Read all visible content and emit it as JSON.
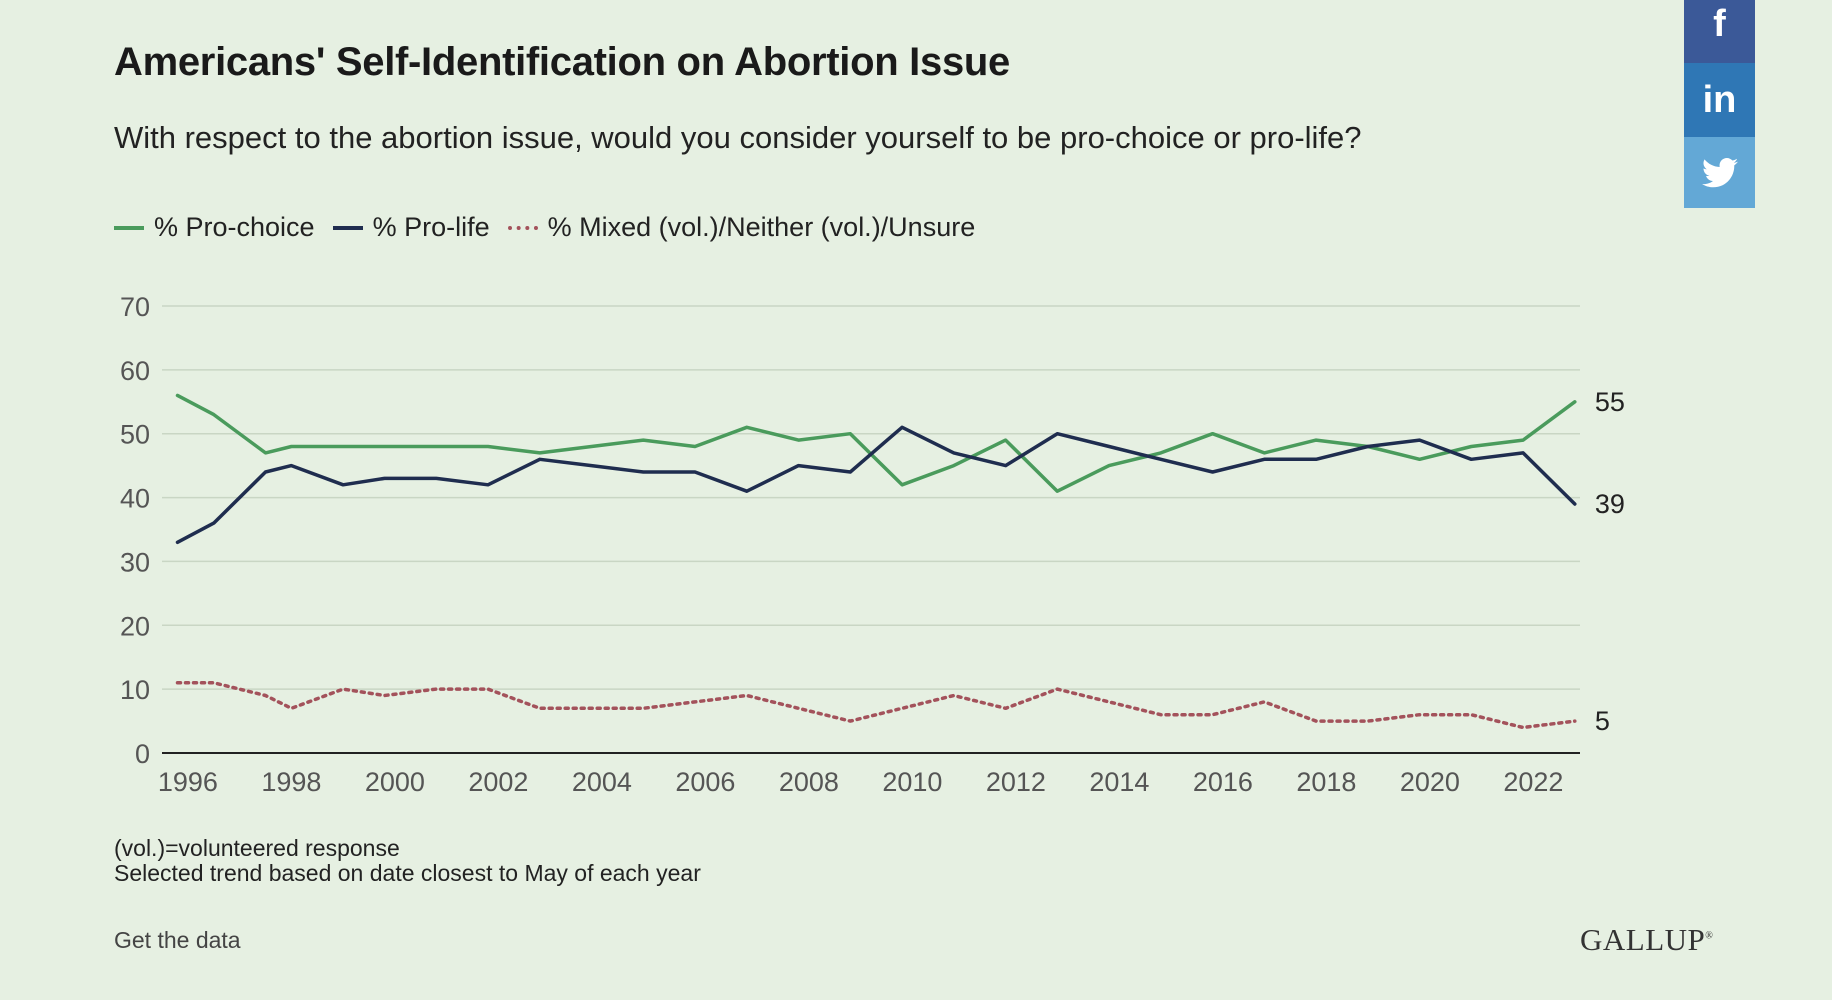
{
  "title": "Americans' Self-Identification on Abortion Issue",
  "subtitle": "With respect to the abortion issue, would you consider yourself to be pro-choice or pro-life?",
  "notes": [
    "(vol.)=volunteered response",
    "Selected trend based on date closest to May of each year"
  ],
  "get_data_label": "Get the data",
  "brand": "GALLUP",
  "brand_mark": "®",
  "share": {
    "facebook": "f",
    "linkedin": "in",
    "twitter_icon": "twitter-bird"
  },
  "colors": {
    "background": "#e6f0e2",
    "pro_choice": "#4a9b5c",
    "pro_life": "#1f2d4f",
    "mixed": "#a3525b",
    "facebook": "#3b5998",
    "linkedin": "#2f77b5",
    "twitter": "#63a8d6"
  },
  "chart_data": {
    "type": "line",
    "title": "Americans' Self-Identification on Abortion Issue",
    "x": [
      1995.8,
      1996.5,
      1997.5,
      1998,
      1999,
      1999.8,
      2000.8,
      2001.8,
      2002.8,
      2003.8,
      2004.8,
      2005.8,
      2006.8,
      2007.8,
      2008.8,
      2009.8,
      2010.8,
      2011.8,
      2012.8,
      2013.8,
      2014.8,
      2015.8,
      2016.8,
      2017.8,
      2018.8,
      2019.8,
      2020.8,
      2021.8,
      2022.8
    ],
    "series": [
      {
        "name": "% Pro-choice",
        "values": [
          56,
          53,
          47,
          48,
          48,
          48,
          48,
          48,
          47,
          48,
          49,
          48,
          51,
          49,
          50,
          42,
          45,
          49,
          41,
          45,
          47,
          50,
          47,
          49,
          48,
          46,
          48,
          49,
          55
        ],
        "end_label": "55"
      },
      {
        "name": "% Pro-life",
        "values": [
          33,
          36,
          44,
          45,
          42,
          43,
          43,
          42,
          46,
          45,
          44,
          44,
          41,
          45,
          44,
          51,
          47,
          45,
          50,
          48,
          46,
          44,
          46,
          46,
          48,
          49,
          46,
          47,
          39
        ],
        "end_label": "39"
      },
      {
        "name": "% Mixed (vol.)/Neither (vol.)/Unsure",
        "values": [
          11,
          11,
          9,
          7,
          10,
          9,
          10,
          10,
          7,
          7,
          7,
          8,
          9,
          7,
          5,
          7,
          9,
          7,
          10,
          8,
          6,
          6,
          8,
          5,
          5,
          6,
          6,
          4,
          5
        ],
        "end_label": "5"
      }
    ],
    "x_ticks": [
      "1996",
      "1998",
      "2000",
      "2002",
      "2004",
      "2006",
      "2008",
      "2010",
      "2012",
      "2014",
      "2016",
      "2018",
      "2020",
      "2022"
    ],
    "y_ticks": [
      "0",
      "10",
      "20",
      "30",
      "40",
      "50",
      "60",
      "70"
    ],
    "xlim": [
      1995.5,
      2022.9
    ],
    "ylim": [
      0,
      70
    ],
    "grid": true,
    "legend_position": "top-left"
  }
}
